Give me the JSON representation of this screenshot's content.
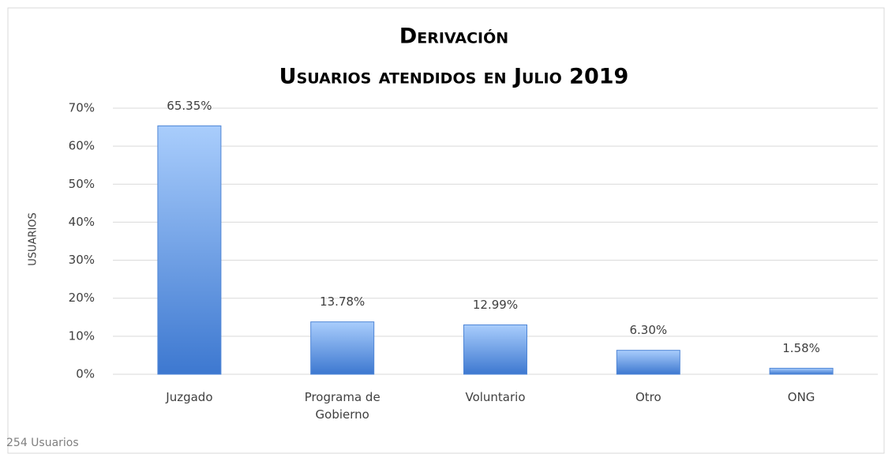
{
  "chart_data": {
    "type": "bar",
    "title": "Derivación",
    "subtitle": "Usuarios atendidos en Julio 2019",
    "y_label": "USUARIOS",
    "note": "254 Usuarios",
    "categories": [
      "Juzgado",
      "Programa de Gobierno",
      "Voluntario",
      "Otro",
      "ONG"
    ],
    "values": [
      65.35,
      13.78,
      12.99,
      6.3,
      1.58
    ],
    "value_labels": [
      "65.35%",
      "13.78%",
      "12.99%",
      "6.30%",
      "1.58%"
    ],
    "color": "#4f86d6",
    "ylim": [
      0,
      70
    ],
    "yticks": [
      {
        "value": 0,
        "label": "0%"
      },
      {
        "value": 10,
        "label": "10%"
      },
      {
        "value": 20,
        "label": "20%"
      },
      {
        "value": 30,
        "label": "30%"
      },
      {
        "value": 40,
        "label": "40%"
      },
      {
        "value": 50,
        "label": "50%"
      },
      {
        "value": 60,
        "label": "60%"
      },
      {
        "value": 70,
        "label": "70%"
      }
    ],
    "grid": true
  }
}
